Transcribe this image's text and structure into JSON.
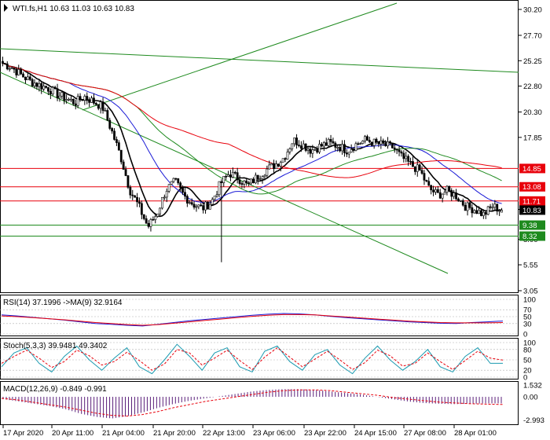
{
  "chart_data": [
    {
      "type": "candlestick",
      "panel": "main",
      "title": "WTI.fs,H1  10.63 11.03 10.63 10.83",
      "symbol": "WTI.fs,H1",
      "last_ohlc": {
        "open": 10.63,
        "high": 11.03,
        "low": 10.63,
        "close": 10.83
      },
      "ylim": [
        3.05,
        30.2
      ],
      "y_ticks": [
        "30.20",
        "27.70",
        "25.25",
        "22.80",
        "20.30",
        "17.85",
        "10.90",
        "8.00",
        "5.55",
        "3.05"
      ],
      "x_ticks": [
        "17 Apr 2020",
        "20 Apr 11:00",
        "21 Apr 04:00",
        "21 Apr 20:00",
        "22 Apr 13:00",
        "23 Apr 06:00",
        "23 Apr 22:00",
        "24 Apr 15:00",
        "27 Apr 08:00",
        "28 Apr 01:00"
      ],
      "price_labels": [
        {
          "text": "14.85",
          "value": 14.85,
          "color": "#e8000b"
        },
        {
          "text": "13.08",
          "value": 13.08,
          "color": "#e8000b"
        },
        {
          "text": "11.71",
          "value": 11.71,
          "color": "#e8000b"
        },
        {
          "text": "10.83",
          "value": 10.83,
          "color": "#000000"
        },
        {
          "text": "9.38",
          "value": 9.38,
          "color": "#1e8a1e"
        },
        {
          "text": "8.32",
          "value": 8.32,
          "color": "#1e8a1e"
        }
      ],
      "horizontal_levels": [
        {
          "value": 14.85,
          "color": "#e8000b"
        },
        {
          "value": 13.08,
          "color": "#e8000b"
        },
        {
          "value": 11.71,
          "color": "#e8000b"
        },
        {
          "value": 9.38,
          "color": "#1e8a1e"
        },
        {
          "value": 8.32,
          "color": "#1e8a1e"
        }
      ],
      "close_path": [
        25.0,
        24.6,
        23.9,
        23.3,
        22.9,
        22.6,
        22.0,
        21.6,
        21.2,
        21.8,
        21.3,
        20.8,
        18.5,
        16.0,
        12.8,
        11.2,
        9.2,
        10.5,
        12.8,
        13.6,
        12.2,
        11.4,
        11.0,
        11.6,
        13.4,
        14.4,
        13.9,
        13.2,
        14.0,
        14.7,
        15.2,
        15.9,
        17.6,
        17.2,
        16.6,
        17.0,
        17.3,
        17.0,
        16.6,
        17.2,
        17.6,
        17.3,
        17.1,
        16.9,
        15.9,
        15.2,
        14.6,
        12.9,
        12.3,
        12.7,
        12.2,
        11.2,
        10.9,
        10.4,
        11.2,
        10.83
      ],
      "colors": {
        "bull": "#ffffff",
        "bear": "#000000",
        "sma_black": "#000000",
        "sma_blue": "#1a1ad6",
        "sma_green": "#1e8a1e",
        "sma_red": "#e8000b"
      }
    },
    {
      "type": "line",
      "panel": "rsi",
      "title": "RSI(14) 37.1996  ->MA(9) 32.9164",
      "ylim": [
        0,
        100
      ],
      "y_ticks": [
        "100",
        "70",
        "50",
        "30",
        "0"
      ],
      "series": [
        {
          "values": [
            55,
            52,
            48,
            44,
            40,
            35,
            30,
            28,
            25,
            23,
            28,
            33,
            38,
            42,
            46,
            50,
            54,
            57,
            59,
            58,
            55,
            51,
            47,
            44,
            41,
            38,
            35,
            33,
            31,
            30,
            33,
            35,
            37.2
          ],
          "color": "#1a1ad6"
        },
        {
          "values": [
            52,
            50,
            47,
            44,
            41,
            37,
            33,
            30,
            27,
            25,
            27,
            31,
            35,
            39,
            43,
            47,
            51,
            54,
            56,
            56,
            55,
            52,
            49,
            46,
            43,
            40,
            37,
            35,
            33,
            32,
            32,
            32,
            32.9
          ],
          "color": "#e8000b"
        }
      ]
    },
    {
      "type": "line",
      "panel": "stoch",
      "title": "Stoch(5,3,3) 39.9481 49.3402",
      "ylim": [
        0,
        100
      ],
      "y_ticks": [
        "100",
        "80",
        "50",
        "20",
        "0"
      ],
      "series": [
        {
          "values": [
            30,
            70,
            85,
            40,
            15,
            60,
            90,
            50,
            20,
            55,
            85,
            30,
            10,
            50,
            95,
            60,
            20,
            70,
            85,
            30,
            15,
            75,
            90,
            45,
            20,
            65,
            80,
            35,
            10,
            55,
            90,
            50,
            20,
            45,
            80,
            30,
            15,
            60,
            85,
            40,
            39.9
          ],
          "color": "#1a9ab0"
        },
        {
          "values": [
            40,
            60,
            78,
            55,
            28,
            45,
            78,
            62,
            35,
            45,
            72,
            48,
            20,
            38,
            80,
            70,
            35,
            55,
            78,
            48,
            22,
            58,
            85,
            58,
            30,
            52,
            75,
            50,
            22,
            42,
            78,
            62,
            32,
            40,
            70,
            45,
            22,
            48,
            75,
            55,
            49.3
          ],
          "color": "#e8000b"
        }
      ]
    },
    {
      "type": "bar",
      "panel": "macd",
      "title": "MACD(12,26,9) -0.849 -0.991",
      "ylim": [
        -3.355,
        1.532
      ],
      "y_ticks": [
        "1.532",
        "0.00",
        "-2.993"
      ],
      "values": [
        -0.3,
        -0.6,
        -0.9,
        -1.2,
        -1.6,
        -2.2,
        -2.6,
        -2.8,
        -2.5,
        -2.0,
        -1.4,
        -0.9,
        -0.5,
        -0.2,
        0.1,
        0.4,
        0.7,
        0.9,
        1.0,
        1.0,
        0.9,
        0.7,
        0.5,
        0.3,
        0.0,
        -0.3,
        -0.6,
        -0.8,
        -0.9,
        -0.95,
        -0.9,
        -0.85,
        -0.849
      ],
      "signal": [
        -0.2,
        -0.4,
        -0.7,
        -1.0,
        -1.3,
        -1.7,
        -2.1,
        -2.4,
        -2.5,
        -2.3,
        -1.9,
        -1.4,
        -1.0,
        -0.6,
        -0.3,
        0.0,
        0.3,
        0.6,
        0.8,
        0.9,
        0.9,
        0.8,
        0.6,
        0.4,
        0.2,
        -0.1,
        -0.3,
        -0.5,
        -0.7,
        -0.8,
        -0.9,
        -0.95,
        -0.991
      ],
      "colors": {
        "bars": "#5a1f7a",
        "signal": "#e8000b"
      }
    }
  ]
}
